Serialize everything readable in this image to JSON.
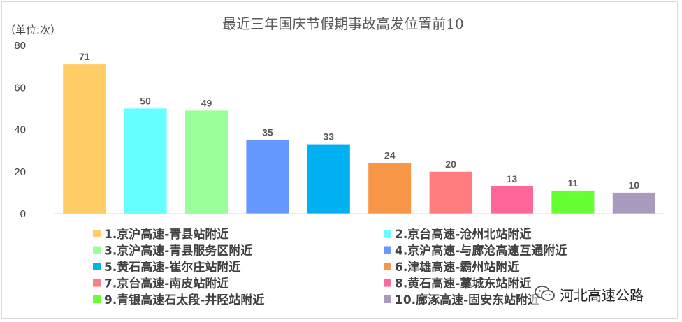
{
  "chart_data": {
    "type": "bar",
    "title": "最近三年国庆节假期事故高发位置前10",
    "unit_label": "（单位:次）",
    "categories": [
      "1.京沪高速-青县站附近",
      "2.京台高速-沧州北站附近",
      "3.京沪高速-青县服务区附近",
      "4.京沪高速-与廊沧高速互通附近",
      "5.黄石高速-崔尔庄站附近",
      "6.津雄高速-霸州站附近",
      "7.京台高速-南皮站附近",
      "8.黄石高速-藁城东站附近",
      "9.青银高速石太段-井陉站附近",
      "10.廊涿高速-固安东站附近"
    ],
    "values": [
      71,
      50,
      49,
      35,
      33,
      24,
      20,
      13,
      11,
      10
    ],
    "colors": [
      "#FFCC66",
      "#66FFFF",
      "#99FF99",
      "#6699FF",
      "#00B0F0",
      "#F79646",
      "#FF7C80",
      "#FF6699",
      "#66FF33",
      "#A99BBD"
    ],
    "ylim": [
      0,
      80
    ],
    "yticks": [
      0,
      20,
      40,
      60,
      80
    ],
    "grid": false,
    "legend_position": "bottom"
  },
  "watermark": {
    "text": "河北高速公路",
    "icon": "wechat-icon"
  }
}
